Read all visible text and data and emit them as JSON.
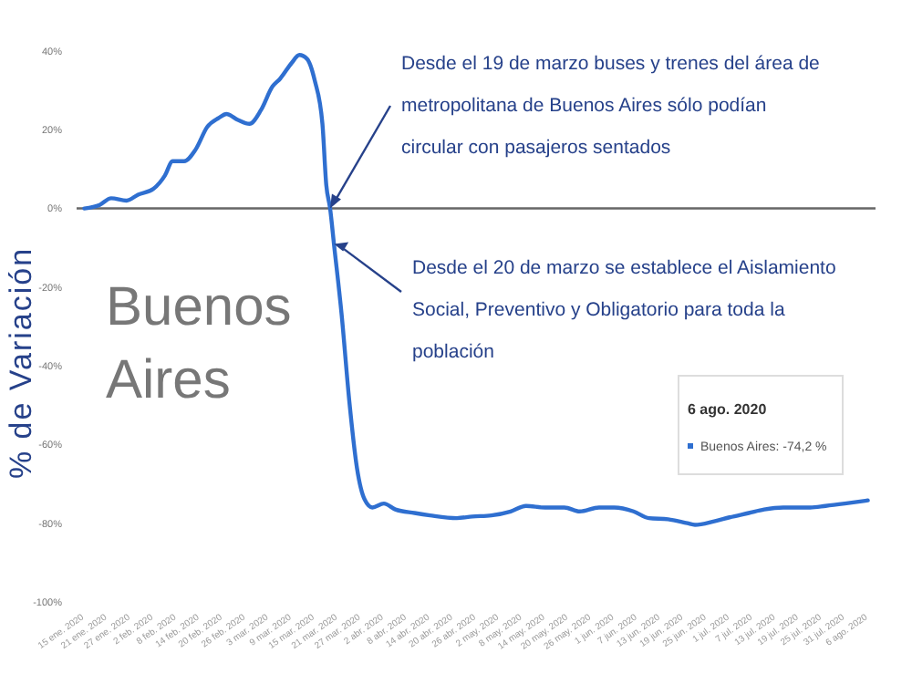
{
  "chart_data": {
    "type": "line",
    "ylabel": "% de Variación",
    "x": [
      "2020-01-15",
      "2020-01-19",
      "2020-01-22",
      "2020-01-26",
      "2020-01-29",
      "2020-02-02",
      "2020-02-05",
      "2020-02-07",
      "2020-02-10",
      "2020-02-13",
      "2020-02-16",
      "2020-02-19",
      "2020-02-21",
      "2020-02-24",
      "2020-02-27",
      "2020-03-01",
      "2020-03-04",
      "2020-03-06",
      "2020-03-09",
      "2020-03-11",
      "2020-03-13",
      "2020-03-15",
      "2020-03-17",
      "2020-03-18",
      "2020-03-19",
      "2020-03-20",
      "2020-03-22",
      "2020-03-24",
      "2020-03-26",
      "2020-03-28",
      "2020-03-30",
      "2020-04-02",
      "2020-04-05",
      "2020-04-10",
      "2020-04-14",
      "2020-04-21",
      "2020-04-25",
      "2020-04-30",
      "2020-05-05",
      "2020-05-09",
      "2020-05-14",
      "2020-05-19",
      "2020-05-23",
      "2020-05-28",
      "2020-06-01",
      "2020-06-06",
      "2020-06-10",
      "2020-06-15",
      "2020-06-20",
      "2020-06-22",
      "2020-06-27",
      "2020-07-01",
      "2020-07-06",
      "2020-07-10",
      "2020-07-15",
      "2020-07-22",
      "2020-07-26",
      "2020-07-31",
      "2020-08-06"
    ],
    "series": [
      {
        "name": "Buenos Aires",
        "color": "#2f6fd0",
        "values": [
          0,
          0.9,
          2.6,
          2,
          3.5,
          5,
          8.4,
          12,
          12,
          15,
          20.7,
          23,
          24,
          22.5,
          21.5,
          25,
          31,
          33,
          37,
          39,
          38,
          32.5,
          21.5,
          6,
          0,
          -9,
          -27,
          -49,
          -66,
          -74,
          -76,
          -75,
          -76.5,
          -77.4,
          -78,
          -78.7,
          -78.3,
          -78,
          -77,
          -75.6,
          -76,
          -76,
          -77,
          -76,
          -76,
          -77,
          -78.7,
          -79,
          -80,
          -80.4,
          -79.5,
          -78.5,
          -77.4,
          -76.5,
          -76,
          -76,
          -75.6,
          -75,
          -74.2
        ]
      }
    ],
    "ylim": [
      -100,
      40
    ],
    "yticks": [
      {
        "value": -100,
        "label": "-100%"
      },
      {
        "value": -80,
        "label": "-80%"
      },
      {
        "value": -60,
        "label": "-60%"
      },
      {
        "value": -40,
        "label": "-40%"
      },
      {
        "value": -20,
        "label": "-20%"
      },
      {
        "value": 0,
        "label": "0%"
      },
      {
        "value": 20,
        "label": "20%"
      },
      {
        "value": 40,
        "label": "40%"
      }
    ],
    "xlim": [
      "2020-01-13",
      "2020-08-08"
    ],
    "xticks": [
      {
        "value": "2020-01-15",
        "label": "15 ene. 2020"
      },
      {
        "value": "2020-01-21",
        "label": "21 ene. 2020"
      },
      {
        "value": "2020-01-27",
        "label": "27 ene. 2020"
      },
      {
        "value": "2020-02-02",
        "label": "2 feb. 2020"
      },
      {
        "value": "2020-02-08",
        "label": "8 feb. 2020"
      },
      {
        "value": "2020-02-14",
        "label": "14 feb. 2020"
      },
      {
        "value": "2020-02-20",
        "label": "20 feb. 2020"
      },
      {
        "value": "2020-02-26",
        "label": "26 feb. 2020"
      },
      {
        "value": "2020-03-03",
        "label": "3 mar. 2020"
      },
      {
        "value": "2020-03-09",
        "label": "9 mar. 2020"
      },
      {
        "value": "2020-03-15",
        "label": "15 mar. 2020"
      },
      {
        "value": "2020-03-21",
        "label": "21 mar. 2020"
      },
      {
        "value": "2020-03-27",
        "label": "27 mar. 2020"
      },
      {
        "value": "2020-04-02",
        "label": "2 abr. 2020"
      },
      {
        "value": "2020-04-08",
        "label": "8 abr. 2020"
      },
      {
        "value": "2020-04-14",
        "label": "14 abr. 2020"
      },
      {
        "value": "2020-04-20",
        "label": "20 abr. 2020"
      },
      {
        "value": "2020-04-26",
        "label": "26 abr. 2020"
      },
      {
        "value": "2020-05-02",
        "label": "2 may. 2020"
      },
      {
        "value": "2020-05-08",
        "label": "8 may. 2020"
      },
      {
        "value": "2020-05-14",
        "label": "14 may. 2020"
      },
      {
        "value": "2020-05-20",
        "label": "20 may. 2020"
      },
      {
        "value": "2020-05-26",
        "label": "26 may. 2020"
      },
      {
        "value": "2020-06-01",
        "label": "1 jun. 2020"
      },
      {
        "value": "2020-06-07",
        "label": "7 jun. 2020"
      },
      {
        "value": "2020-06-13",
        "label": "13 jun. 2020"
      },
      {
        "value": "2020-06-19",
        "label": "19 jun. 2020"
      },
      {
        "value": "2020-06-25",
        "label": "25 jun. 2020"
      },
      {
        "value": "2020-07-01",
        "label": "1 jul. 2020"
      },
      {
        "value": "2020-07-07",
        "label": "7 jul. 2020"
      },
      {
        "value": "2020-07-13",
        "label": "13 jul. 2020"
      },
      {
        "value": "2020-07-19",
        "label": "19 jul. 2020"
      },
      {
        "value": "2020-07-25",
        "label": "25 jul. 2020"
      },
      {
        "value": "2020-07-31",
        "label": "31 jul. 2020"
      },
      {
        "value": "2020-08-06",
        "label": "6 ago. 2020"
      }
    ],
    "ref_lines": [
      {
        "axis": "y",
        "value": 0,
        "color": "#666666"
      }
    ],
    "annotations": [
      {
        "text": "Desde el 19 de marzo buses y trenes del área de metropolitana de Buenos Aires sólo podían circular con pasajeros sentados",
        "x": "2020-03-19",
        "y": 0
      },
      {
        "text": "Desde el 20 de marzo se establece el Aislamiento Social, Preventivo y Obligatorio para toda la población",
        "x": "2020-03-20",
        "y": -9
      },
      {
        "text": "6 ago. 2020"
      },
      "Buenos Aires: -74,2 %"
    ],
    "grid": false,
    "marker": "none",
    "line_style": "solid"
  }
}
